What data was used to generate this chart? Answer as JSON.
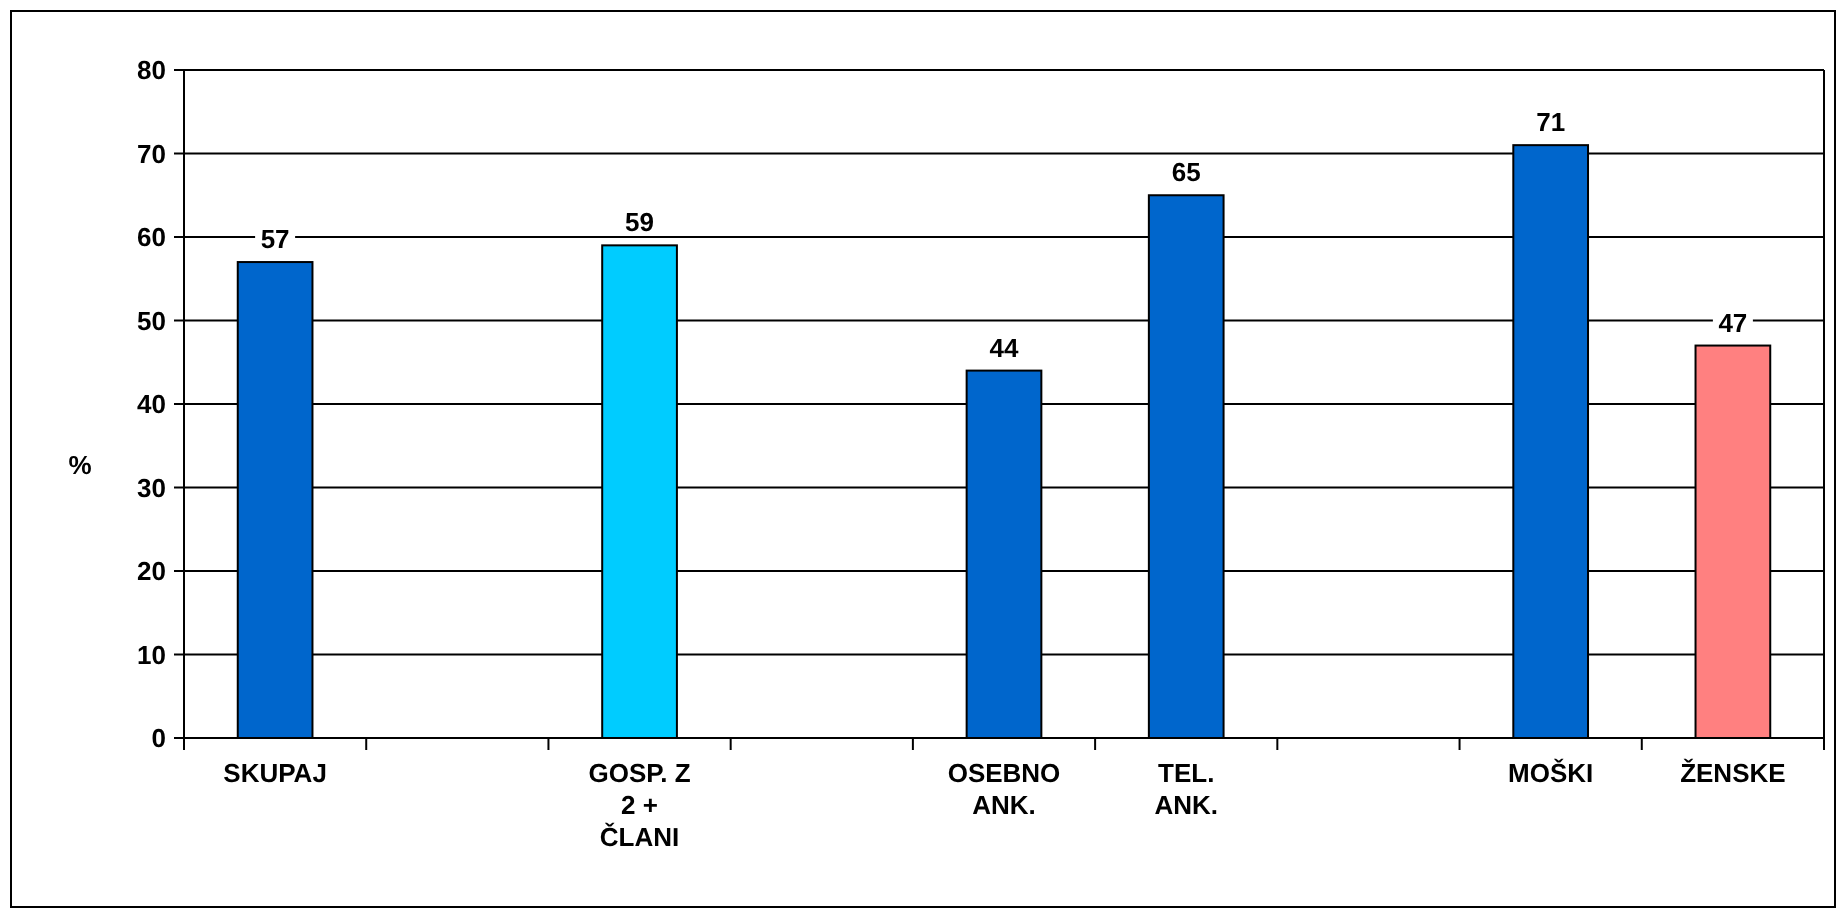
{
  "chart_data": {
    "type": "bar",
    "ylabel": "%",
    "categories": [
      "SKUPAJ",
      null,
      "GOSP. Z 2 + ČLANI",
      null,
      "OSEBNO ANK.",
      "TEL. ANK.",
      null,
      "MOŠKI",
      "ŽENSKE"
    ],
    "values": [
      57,
      null,
      59,
      null,
      44,
      65,
      null,
      71,
      47
    ],
    "colors": [
      "#0066cc",
      null,
      "#00ccff",
      null,
      "#0066cc",
      "#0066cc",
      null,
      "#0066cc",
      "#ff8080"
    ],
    "ylim": [
      0,
      80
    ],
    "yticks": [
      0,
      10,
      20,
      30,
      40,
      50,
      60,
      70,
      80
    ],
    "grid": "y",
    "data_labels": true
  }
}
